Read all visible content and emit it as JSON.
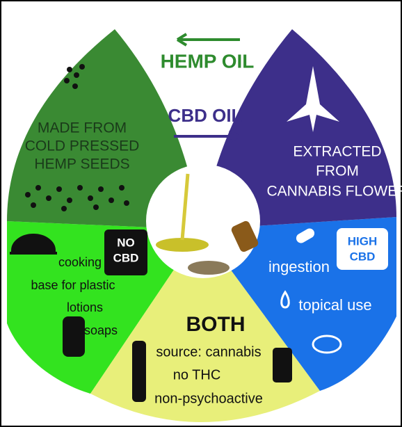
{
  "header": {
    "hemp_oil": "HEMP OIL",
    "cbd_oil": "CBD OIL"
  },
  "hemp_segment": {
    "lines": [
      "MADE FROM",
      "COLD PRESSED",
      "HEMP SEEDS"
    ]
  },
  "cbd_segment": {
    "lines": [
      "EXTRACTED",
      "FROM",
      "CANNABIS FLOWER"
    ]
  },
  "hemp_uses": {
    "items": [
      "cooking",
      "base for plastic",
      "lotions",
      "soaps"
    ],
    "badge": [
      "NO",
      "CBD"
    ]
  },
  "cbd_uses": {
    "items": [
      "ingestion",
      "topical use"
    ],
    "badge": [
      "HIGH",
      "CBD"
    ]
  },
  "both": {
    "title": "BOTH",
    "lines": [
      "source: cannabis",
      "no THC",
      "non-psychoactive"
    ]
  }
}
